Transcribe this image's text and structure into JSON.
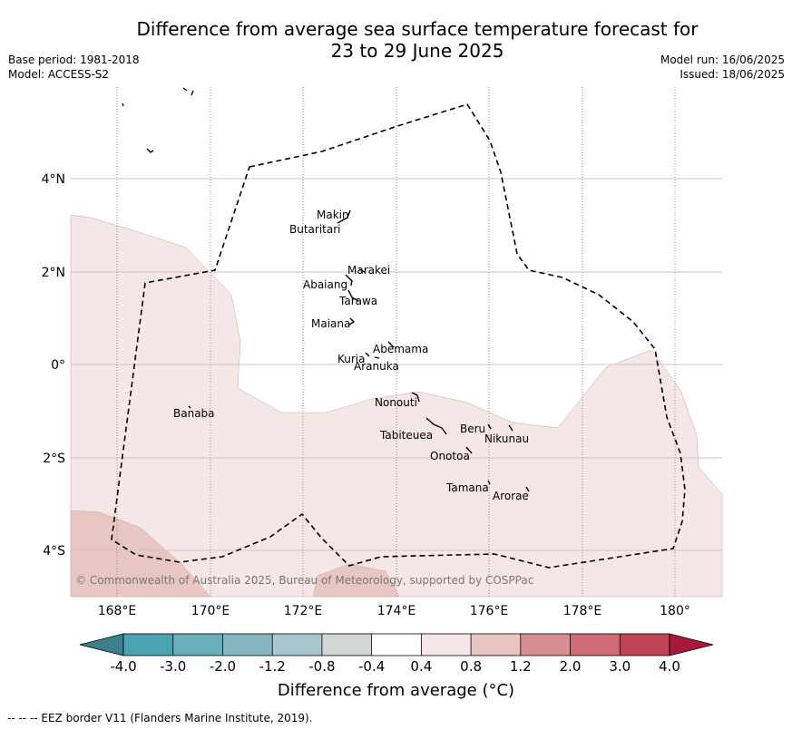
{
  "title_line1": "Difference from average sea surface temperature forecast for",
  "title_line2": "23 to 29 June 2025",
  "base_period": "Base period: 1981-2018",
  "model": "Model: ACCESS-S2",
  "model_run": "Model run: 16/06/2025",
  "issued": "Issued: 18/06/2025",
  "copyright": "© Commonwealth of Australia 2025, Bureau of Meteorology, supported by COSPPac",
  "lat_labels": [
    "4°N",
    "2°N",
    "0°",
    "2°S",
    "4°S"
  ],
  "lon_labels": [
    "168°E",
    "170°E",
    "172°E",
    "174°E",
    "176°E",
    "178°E",
    "180°"
  ],
  "islands": [
    "Makin",
    "Butaritari",
    "Marakei",
    "Abaiang",
    "Tarawa",
    "Maiana",
    "Abemama",
    "Kuria",
    "Aranuka",
    "Nonouti",
    "Banaba",
    "Beru",
    "Nikunau",
    "Tabiteuea",
    "Onotoa",
    "Tamana",
    "Arorae"
  ],
  "colorbar": {
    "ticks": [
      "-4.0",
      "-3.0",
      "-2.0",
      "-1.2",
      "-0.8",
      "-0.4",
      "0.4",
      "0.8",
      "1.2",
      "2.0",
      "3.0",
      "4.0"
    ],
    "colors": [
      "#3a7f8c",
      "#4aa3b2",
      "#6aadbb",
      "#87b6c1",
      "#a8c6cc",
      "#d3d6d6",
      "#ffffff",
      "#f5e6e6",
      "#e8c4c2",
      "#d98e96",
      "#cf6b76",
      "#c14455",
      "#a8183a"
    ],
    "title": "Difference from average (°C)"
  },
  "footer": "--  --  -- EEZ border V11 (Flanders Marine Institute, 2019)."
}
